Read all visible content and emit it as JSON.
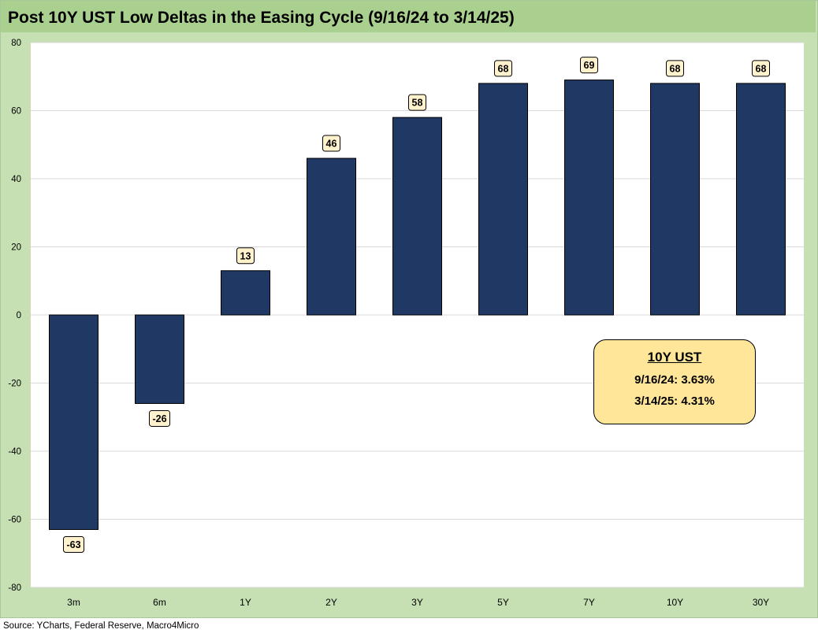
{
  "chart_data": {
    "type": "bar",
    "title": "Post 10Y UST Low Deltas in the Easing Cycle (9/16/24 to 3/14/25)",
    "categories": [
      "3m",
      "6m",
      "1Y",
      "2Y",
      "3Y",
      "5Y",
      "7Y",
      "10Y",
      "30Y"
    ],
    "values": [
      -63,
      -26,
      13,
      46,
      58,
      68,
      69,
      68,
      68
    ],
    "ylim": [
      -80,
      80
    ],
    "yticks": [
      -80,
      -60,
      -40,
      -20,
      0,
      20,
      40,
      60,
      80
    ],
    "grid": true,
    "legend": "none",
    "bar_color": "#1f3864",
    "label_bg": "#fff2cc",
    "annotation": {
      "heading": "10Y UST",
      "line1": "9/16/24: 3.63%",
      "line2": "3/14/25: 4.31%",
      "bg": "#ffe699"
    }
  },
  "source": "Source: YCharts, Federal Reserve, Macro4Micro",
  "colors": {
    "frame": "#c6e0b4",
    "title_bar": "#a9d08e",
    "grid": "#d9d9d9"
  }
}
